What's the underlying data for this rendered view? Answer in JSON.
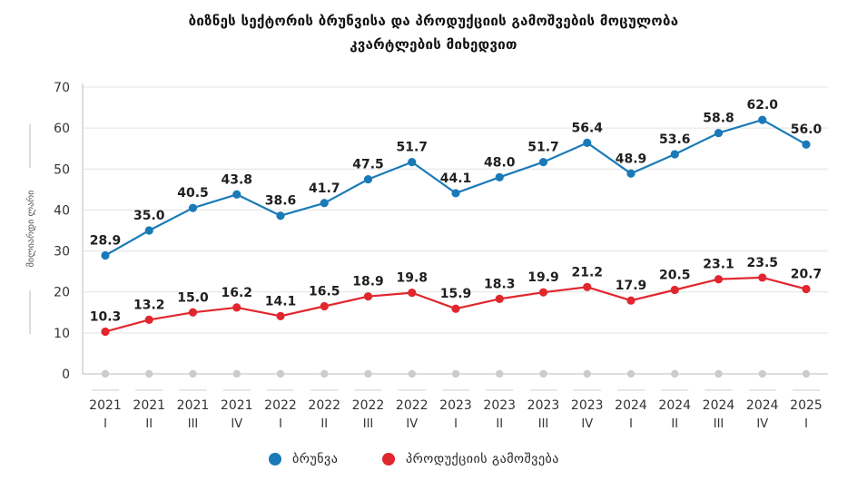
{
  "chart_data": {
    "type": "line",
    "title": "ბიზნეს სექტორის ბრუნვისა და პროდუქციის გამოშვების მოცულობა",
    "subtitle": "კვარტლების მიხედვით",
    "ylabel": "მილიარდი ლარი",
    "xlabel": "",
    "ylim": [
      0,
      70
    ],
    "yticks": [
      0,
      10,
      20,
      30,
      40,
      50,
      60,
      70
    ],
    "grid": true,
    "legend_position": "bottom",
    "categories": [
      {
        "year": "2021",
        "quarter": "I"
      },
      {
        "year": "2021",
        "quarter": "II"
      },
      {
        "year": "2021",
        "quarter": "III"
      },
      {
        "year": "2021",
        "quarter": "IV"
      },
      {
        "year": "2022",
        "quarter": "I"
      },
      {
        "year": "2022",
        "quarter": "II"
      },
      {
        "year": "2022",
        "quarter": "III"
      },
      {
        "year": "2022",
        "quarter": "IV"
      },
      {
        "year": "2023",
        "quarter": "I"
      },
      {
        "year": "2023",
        "quarter": "II"
      },
      {
        "year": "2023",
        "quarter": "III"
      },
      {
        "year": "2023",
        "quarter": "IV"
      },
      {
        "year": "2024",
        "quarter": "I"
      },
      {
        "year": "2024",
        "quarter": "II"
      },
      {
        "year": "2024",
        "quarter": "III"
      },
      {
        "year": "2024",
        "quarter": "IV"
      },
      {
        "year": "2025",
        "quarter": "I"
      }
    ],
    "series": [
      {
        "name": "ბრუნვა",
        "color": "#1a7ab8",
        "values": [
          28.9,
          35.0,
          40.5,
          43.8,
          38.6,
          41.7,
          47.5,
          51.7,
          44.1,
          48.0,
          51.7,
          56.4,
          48.9,
          53.6,
          58.8,
          62.0,
          56.0
        ],
        "labels": [
          "28.9",
          "35.0",
          "40.5",
          "43.8",
          "38.6",
          "41.7",
          "47.5",
          "51.7",
          "44.1",
          "48.0",
          "51.7",
          "56.4",
          "48.9",
          "53.6",
          "58.8",
          "62.0",
          "56.0"
        ]
      },
      {
        "name": "პროდუქციის გამოშვება",
        "color": "#e1262d",
        "values": [
          10.3,
          13.2,
          15.0,
          16.2,
          14.1,
          16.5,
          18.9,
          19.8,
          15.9,
          18.3,
          19.9,
          21.2,
          17.9,
          20.5,
          23.1,
          23.5,
          20.7
        ],
        "labels": [
          "10.3",
          "13.2",
          "15.0",
          "16.2",
          "14.1",
          "16.5",
          "18.9",
          "19.8",
          "15.9",
          "18.3",
          "19.9",
          "21.2",
          "17.9",
          "20.5",
          "23.1",
          "23.5",
          "20.7"
        ]
      }
    ],
    "baseline_marker_color": "#cccccc"
  }
}
